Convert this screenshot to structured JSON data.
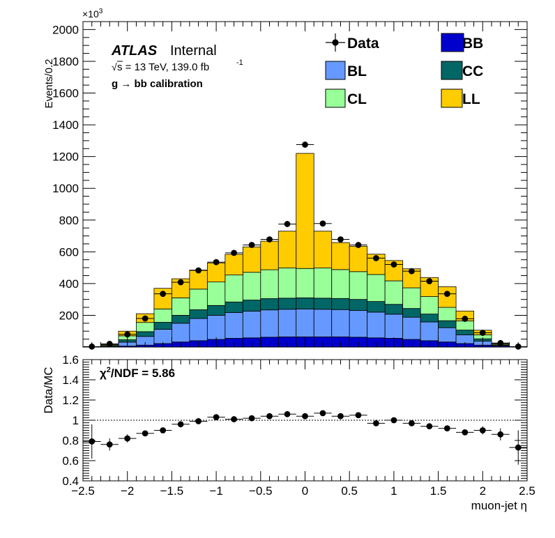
{
  "chart_data": [
    {
      "type": "bar",
      "stacked": true,
      "x_edges": [
        -2.5,
        -2.3,
        -2.1,
        -1.9,
        -1.7,
        -1.5,
        -1.3,
        -1.1,
        -0.9,
        -0.7,
        -0.5,
        -0.3,
        -0.1,
        0.1,
        0.3,
        0.5,
        0.7,
        0.9,
        1.1,
        1.3,
        1.5,
        1.7,
        1.9,
        2.1,
        2.3,
        2.5
      ],
      "series": [
        {
          "name": "BB",
          "color": "#0000cc",
          "values": [
            0,
            2,
            6,
            12,
            22,
            32,
            40,
            48,
            55,
            58,
            62,
            64,
            64,
            64,
            64,
            62,
            58,
            55,
            48,
            40,
            32,
            22,
            12,
            6,
            2
          ]
        },
        {
          "name": "BL",
          "color": "#6699ff",
          "values": [
            0,
            5,
            25,
            55,
            90,
            118,
            140,
            152,
            162,
            168,
            172,
            174,
            176,
            174,
            172,
            168,
            162,
            152,
            140,
            118,
            90,
            55,
            25,
            5,
            0
          ]
        },
        {
          "name": "CC",
          "color": "#006666",
          "values": [
            0,
            3,
            15,
            30,
            44,
            50,
            55,
            62,
            67,
            70,
            71,
            70,
            70,
            70,
            70,
            70,
            67,
            62,
            55,
            50,
            44,
            30,
            15,
            3,
            0
          ]
        },
        {
          "name": "CL",
          "color": "#99ff99",
          "values": [
            0,
            5,
            25,
            58,
            84,
            110,
            130,
            148,
            170,
            175,
            182,
            190,
            185,
            190,
            182,
            175,
            170,
            148,
            130,
            110,
            84,
            58,
            25,
            5,
            0
          ]
        },
        {
          "name": "LL",
          "color": "#ffcc00",
          "values": [
            0,
            5,
            29,
            55,
            130,
            120,
            120,
            120,
            130,
            160,
            180,
            232,
            725,
            232,
            170,
            160,
            128,
            128,
            120,
            120,
            130,
            62,
            29,
            5,
            0
          ]
        }
      ],
      "data_points": {
        "name": "Data",
        "x": [
          -2.4,
          -2.2,
          -2.0,
          -1.8,
          -1.6,
          -1.4,
          -1.2,
          -1.0,
          -0.8,
          -0.6,
          -0.4,
          -0.2,
          0.0,
          0.2,
          0.4,
          0.6,
          0.8,
          1.0,
          1.2,
          1.4,
          1.6,
          1.8,
          2.0,
          2.2,
          2.4
        ],
        "y": [
          3,
          20,
          80,
          180,
          335,
          408,
          483,
          535,
          593,
          643,
          678,
          775,
          1275,
          778,
          678,
          643,
          560,
          520,
          478,
          415,
          335,
          178,
          90,
          25,
          3
        ]
      },
      "xlim": [
        -2.5,
        2.5
      ],
      "ylim": [
        0,
        2050
      ],
      "y_ticks": [
        200,
        400,
        600,
        800,
        1000,
        1200,
        1400,
        1600,
        1800,
        2000
      ],
      "ylabel": "Events/0.2",
      "y_exponent_base": "×10",
      "y_exponent_power": "3",
      "legend_placement": "top-right"
    },
    {
      "type": "scatter",
      "x": [
        -2.4,
        -2.2,
        -2.0,
        -1.8,
        -1.6,
        -1.4,
        -1.2,
        -1.0,
        -0.8,
        -0.6,
        -0.4,
        -0.2,
        0.0,
        0.2,
        0.4,
        0.6,
        0.8,
        1.0,
        1.2,
        1.4,
        1.6,
        1.8,
        2.0,
        2.2,
        2.4
      ],
      "y": [
        0.79,
        0.76,
        0.82,
        0.87,
        0.9,
        0.96,
        0.99,
        1.03,
        1.01,
        1.02,
        1.04,
        1.06,
        1.04,
        1.07,
        1.04,
        1.05,
        0.97,
        1.0,
        0.97,
        0.94,
        0.92,
        0.88,
        0.9,
        0.86,
        0.73
      ],
      "y_err": [
        0.17,
        0.06,
        0.04,
        0.02,
        0.015,
        0.012,
        0.01,
        0.01,
        0.01,
        0.01,
        0.01,
        0.01,
        0.01,
        0.01,
        0.01,
        0.01,
        0.01,
        0.01,
        0.01,
        0.012,
        0.015,
        0.02,
        0.04,
        0.06,
        0.17
      ],
      "xlim": [
        -2.5,
        2.5
      ],
      "ylim": [
        0.4,
        1.6
      ],
      "reference_line": 1.0,
      "y_ticks": [
        "0.4",
        "0.6",
        "0.8",
        "1",
        "1.2",
        "1.4",
        "1.6"
      ],
      "x_ticks": [
        "−2.5",
        "−2",
        "−1.5",
        "−1",
        "−0.5",
        "0",
        "0.5",
        "1",
        "1.5",
        "2",
        "2.5"
      ],
      "ylabel": "Data/MC",
      "xlabel": "muon-jet η"
    }
  ],
  "annotations": {
    "atlas": "ATLAS",
    "internal": "Internal",
    "sqrt_symbol": "√",
    "energy_lumi": "s = 13 TeV, 139.0 fb",
    "lumi_exponent": "-1",
    "calibration": "g  → bb calibration",
    "chi2_label": "χ",
    "chi2_power": "2",
    "chi2_text": "/NDF = 5.86"
  }
}
